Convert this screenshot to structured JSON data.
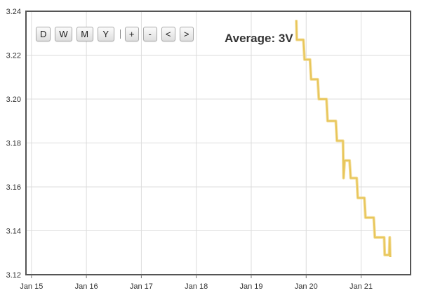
{
  "toolbar": {
    "buttons": [
      "D",
      "W",
      "M",
      "Y",
      "+",
      "-",
      "<",
      ">"
    ]
  },
  "average_label": "Average: 3V",
  "colors": {
    "line": "#e8c65a",
    "grid": "#dcdcdc",
    "border": "#555555"
  },
  "chart_data": {
    "type": "line",
    "title": "",
    "xlabel": "",
    "ylabel": "",
    "x_ticks": [
      "Jan 15",
      "Jan 16",
      "Jan 17",
      "Jan 18",
      "Jan 19",
      "Jan 20",
      "Jan 21"
    ],
    "x_tick_positions": [
      0,
      1,
      2,
      3,
      4,
      5,
      6
    ],
    "y_ticks": [
      "3.24",
      "3.22",
      "3.20",
      "3.18",
      "3.16",
      "3.14",
      "3.12"
    ],
    "xlim": [
      -0.1,
      6.9
    ],
    "ylim": [
      3.12,
      3.24
    ],
    "grid": true,
    "legend": "none",
    "series": [
      {
        "values": [
          [
            4.82,
            3.236
          ],
          [
            4.83,
            3.227
          ],
          [
            4.95,
            3.227
          ],
          [
            4.97,
            3.218
          ],
          [
            5.07,
            3.218
          ],
          [
            5.09,
            3.209
          ],
          [
            5.21,
            3.209
          ],
          [
            5.23,
            3.2
          ],
          [
            5.37,
            3.2
          ],
          [
            5.39,
            3.19
          ],
          [
            5.54,
            3.19
          ],
          [
            5.56,
            3.181
          ],
          [
            5.67,
            3.181
          ],
          [
            5.68,
            3.164
          ],
          [
            5.7,
            3.172
          ],
          [
            5.79,
            3.172
          ],
          [
            5.81,
            3.164
          ],
          [
            5.92,
            3.164
          ],
          [
            5.94,
            3.155
          ],
          [
            6.06,
            3.155
          ],
          [
            6.08,
            3.146
          ],
          [
            6.23,
            3.146
          ],
          [
            6.25,
            3.137
          ],
          [
            6.42,
            3.137
          ],
          [
            6.43,
            3.129
          ],
          [
            6.51,
            3.129
          ],
          [
            6.52,
            3.137
          ],
          [
            6.53,
            3.128
          ]
        ]
      }
    ]
  }
}
